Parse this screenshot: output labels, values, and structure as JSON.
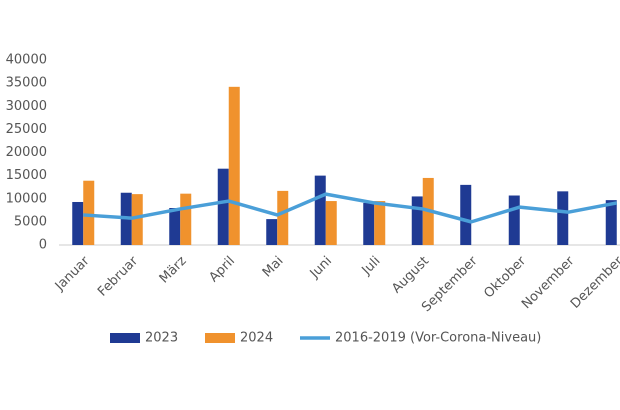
{
  "chart_data": {
    "type": "bar",
    "categories": [
      "Januar",
      "Februar",
      "März",
      "April",
      "Mai",
      "Juni",
      "Juli",
      "August",
      "September",
      "Oktober",
      "November",
      "Dezember"
    ],
    "series": [
      {
        "name": "2023",
        "color": "#1f3a93",
        "values": [
          9300,
          11300,
          8000,
          16500,
          5600,
          15000,
          9100,
          10500,
          13000,
          10700,
          11600,
          9700
        ]
      },
      {
        "name": "2024",
        "color": "#f0922d",
        "values": [
          13900,
          11000,
          11100,
          34200,
          11700,
          9500,
          9500,
          14500,
          null,
          null,
          null,
          null
        ]
      },
      {
        "name": "2016-2019 (Vor-Corona-Niveau)",
        "color": "#4a9fd8",
        "type": "line",
        "values": [
          6500,
          5800,
          7800,
          9500,
          6500,
          11000,
          9100,
          7800,
          5000,
          8200,
          7100,
          9100
        ]
      }
    ],
    "ylim": [
      0,
      40000
    ],
    "yticks": [
      0,
      5000,
      10000,
      15000,
      20000,
      25000,
      30000,
      35000,
      40000
    ],
    "grid": false,
    "legend": "bottom"
  }
}
